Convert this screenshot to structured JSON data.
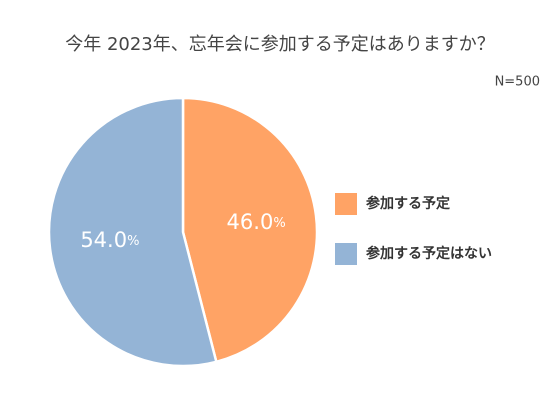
{
  "chart_data": {
    "type": "pie",
    "title": "今年 2023年、忘年会に参加する予定はありますか？",
    "subtitle": "N=500",
    "categories": [
      "参加する予定",
      "参加する予定はない"
    ],
    "values": [
      46.0,
      54.0
    ],
    "value_labels": [
      "46.0%",
      "54.0%"
    ],
    "colors": [
      "#ffa365",
      "#94b4d6"
    ],
    "legend": "right"
  }
}
